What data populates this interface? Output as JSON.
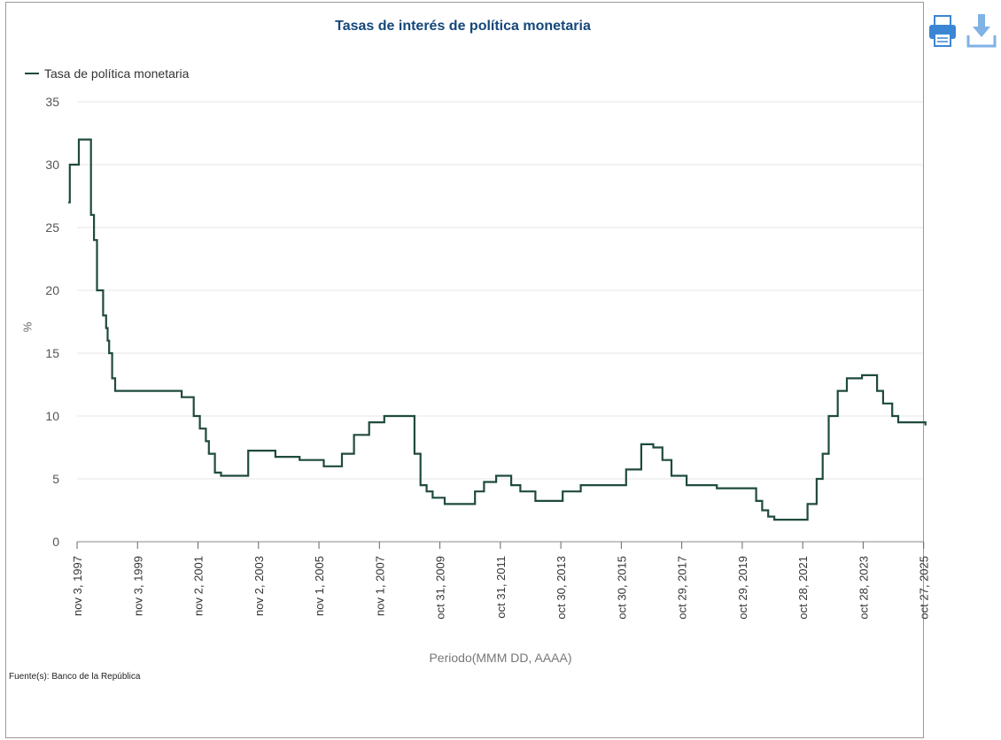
{
  "chart_title": "Tasas de interés de política monetaria",
  "legend_label": "Tasa de política monetaria",
  "source_label": "Fuente(s): Banco de la República",
  "toolbar": {
    "print_icon": "printer-icon",
    "download_icon": "download-icon"
  },
  "colors": {
    "line": "#1f4a3f",
    "title": "#14477a",
    "icon": "#3a86d4"
  },
  "chart_data": {
    "type": "line",
    "title": "Tasas de interés de política monetaria",
    "xlabel": "Periodo(MMM DD, AAAA)",
    "ylabel": "%",
    "ylim": [
      0,
      35
    ],
    "yticks": [
      0,
      5,
      10,
      15,
      20,
      25,
      30,
      35
    ],
    "grid": true,
    "legend_position": "top-left",
    "xtick_labels": [
      "nov 3, 1997",
      "nov 3, 1999",
      "nov 2, 2001",
      "nov 2, 2003",
      "nov 1, 2005",
      "nov 1, 2007",
      "oct 31, 2009",
      "oct 31, 2011",
      "oct 30, 2013",
      "oct 30, 2015",
      "oct 29, 2017",
      "oct 29, 2019",
      "oct 28, 2021",
      "oct 28, 2023",
      "oct 27, 2025"
    ],
    "series": [
      {
        "name": "Tasa de política monetaria",
        "x": [
          1997.55,
          1997.6,
          1997.9,
          1998.0,
          1998.3,
          1998.4,
          1998.5,
          1998.7,
          1998.8,
          1998.85,
          1998.9,
          1999.0,
          1999.1,
          1999.3,
          1999.5,
          1999.7,
          1999.8,
          1999.9,
          2000.0,
          2000.2,
          2001.3,
          2001.7,
          2001.9,
          2002.1,
          2002.2,
          2002.4,
          2002.6,
          2003.2,
          2003.5,
          2004.0,
          2004.3,
          2004.4,
          2005.2,
          2006.0,
          2006.1,
          2006.6,
          2007.0,
          2007.5,
          2008.0,
          2008.5,
          2009.0,
          2009.2,
          2009.4,
          2009.6,
          2009.8,
          2010.0,
          2010.6,
          2011.0,
          2011.3,
          2011.7,
          2012.0,
          2012.2,
          2012.5,
          2013.0,
          2013.3,
          2013.5,
          2013.9,
          2014.5,
          2015.0,
          2015.5,
          2016.0,
          2016.5,
          2016.9,
          2017.2,
          2017.5,
          2018.0,
          2019.0,
          2020.0,
          2020.3,
          2020.5,
          2020.7,
          2020.9,
          2021.9,
          2022.0,
          2022.3,
          2022.5,
          2022.7,
          2023.0,
          2023.3,
          2023.8,
          2024.0,
          2024.3,
          2024.5,
          2024.8,
          2025.0,
          2025.9
        ],
        "values": [
          27,
          30,
          32,
          32,
          26,
          24,
          20,
          18,
          17,
          16,
          15,
          13,
          12,
          12,
          12,
          12,
          12,
          12,
          12,
          12,
          11.5,
          10,
          9,
          8,
          7,
          5.5,
          5.25,
          5.25,
          7.25,
          7.25,
          7.25,
          6.75,
          6.5,
          6.0,
          6.0,
          7.0,
          8.5,
          9.5,
          10.0,
          10.0,
          7.0,
          4.5,
          4.0,
          3.5,
          3.5,
          3.0,
          3.0,
          4.0,
          4.75,
          5.25,
          5.25,
          4.5,
          4.0,
          3.25,
          3.25,
          3.25,
          4.0,
          4.5,
          4.5,
          4.5,
          5.75,
          7.75,
          7.5,
          6.5,
          5.25,
          4.5,
          4.25,
          4.25,
          3.25,
          2.5,
          2.0,
          1.75,
          1.75,
          3.0,
          5.0,
          7.0,
          10.0,
          12.0,
          13.0,
          13.25,
          13.25,
          12.0,
          11.0,
          10.0,
          9.5,
          9.25
        ]
      }
    ]
  }
}
